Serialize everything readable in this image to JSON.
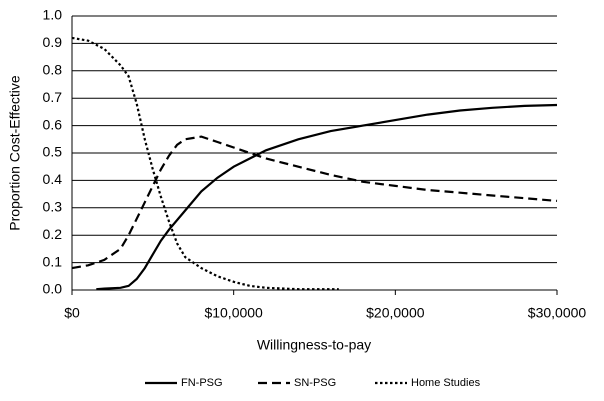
{
  "chart_data": {
    "type": "line",
    "xlabel": "Willingness-to-pay",
    "ylabel": "Proportion Cost-Effective",
    "xlim": [
      0,
      30000
    ],
    "xticks": [
      {
        "value": 0,
        "label": "$0"
      },
      {
        "value": 10000,
        "label": "$10,0000"
      },
      {
        "value": 20000,
        "label": "$20,0000"
      },
      {
        "value": 30000,
        "label": "$30,0000"
      }
    ],
    "ylim": [
      0,
      1
    ],
    "yticks": [
      {
        "value": 0,
        "label": "0.0"
      },
      0.1,
      0.2,
      0.3,
      0.4,
      0.5,
      0.6,
      0.7,
      0.8,
      0.9,
      {
        "value": 1,
        "label": "1.0"
      }
    ],
    "grid": true,
    "legend": "bottom",
    "series": [
      {
        "name": "FN-PSG",
        "color": "#000000",
        "style": "solid",
        "x": [
          1500,
          2000,
          3000,
          3500,
          4000,
          4500,
          5000,
          5500,
          6000,
          7000,
          8000,
          9000,
          10000,
          11000,
          12000,
          14000,
          16000,
          18000,
          20000,
          22000,
          24000,
          26000,
          28000,
          30000
        ],
        "values": [
          0.003,
          0.005,
          0.008,
          0.015,
          0.04,
          0.08,
          0.13,
          0.18,
          0.22,
          0.29,
          0.36,
          0.41,
          0.45,
          0.48,
          0.51,
          0.55,
          0.58,
          0.6,
          0.62,
          0.64,
          0.655,
          0.665,
          0.672,
          0.675
        ]
      },
      {
        "name": "SN-PSG",
        "color": "#000000",
        "style": "dashed",
        "x": [
          0,
          1000,
          2000,
          3000,
          3500,
          4000,
          4500,
          5000,
          5500,
          6000,
          6500,
          7000,
          8000,
          9000,
          10000,
          11000,
          12000,
          14000,
          16000,
          18000,
          20000,
          22000,
          24000,
          26000,
          28000,
          30000
        ],
        "values": [
          0.08,
          0.09,
          0.11,
          0.15,
          0.2,
          0.26,
          0.32,
          0.38,
          0.44,
          0.49,
          0.53,
          0.55,
          0.56,
          0.54,
          0.52,
          0.5,
          0.48,
          0.45,
          0.42,
          0.395,
          0.38,
          0.365,
          0.355,
          0.345,
          0.335,
          0.325
        ]
      },
      {
        "name": "Home Studies",
        "color": "#000000",
        "style": "dotted",
        "x": [
          0,
          1000,
          2000,
          3000,
          3500,
          4000,
          4500,
          5000,
          5500,
          6000,
          6500,
          7000,
          8000,
          9000,
          10000,
          11000,
          12000,
          14000,
          16500
        ],
        "values": [
          0.92,
          0.91,
          0.88,
          0.82,
          0.78,
          0.68,
          0.55,
          0.44,
          0.34,
          0.25,
          0.17,
          0.12,
          0.08,
          0.05,
          0.03,
          0.015,
          0.008,
          0.003,
          0.003
        ]
      }
    ]
  }
}
